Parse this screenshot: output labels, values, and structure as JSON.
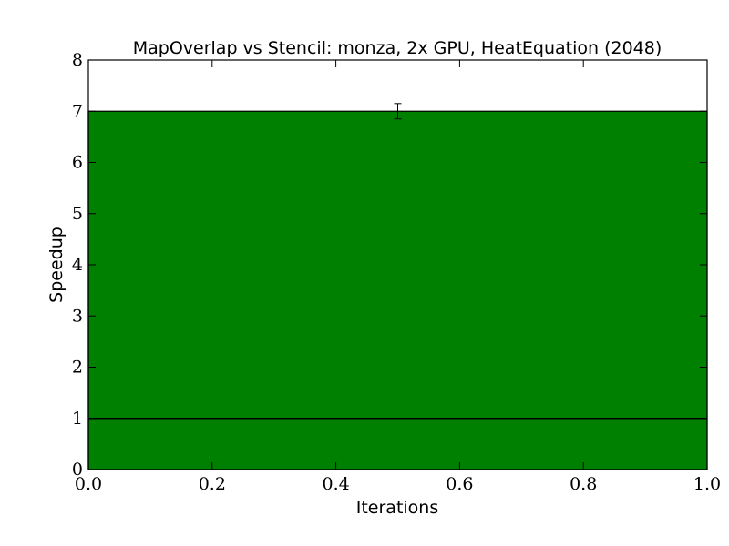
{
  "chart_data": {
    "type": "bar",
    "title": "MapOverlap vs Stencil: monza, 2x GPU, HeatEquation (2048)",
    "xlabel": "Iterations",
    "ylabel": "Speedup",
    "xlim": [
      0.0,
      1.0
    ],
    "ylim": [
      0,
      8
    ],
    "x_ticks": [
      "0.0",
      "0.2",
      "0.4",
      "0.6",
      "0.8",
      "1.0"
    ],
    "y_ticks": [
      "0",
      "1",
      "2",
      "3",
      "4",
      "5",
      "6",
      "7",
      "8"
    ],
    "bars": [
      {
        "x_start": 0.0,
        "x_end": 1.0,
        "value": 7.0,
        "error_low": 6.85,
        "error_high": 7.15
      }
    ],
    "reference_line": {
      "value": 1.0
    },
    "grid": false,
    "colors": {
      "bar": "#008000",
      "error_bar": "#000000",
      "reference_line": "#000000"
    }
  }
}
